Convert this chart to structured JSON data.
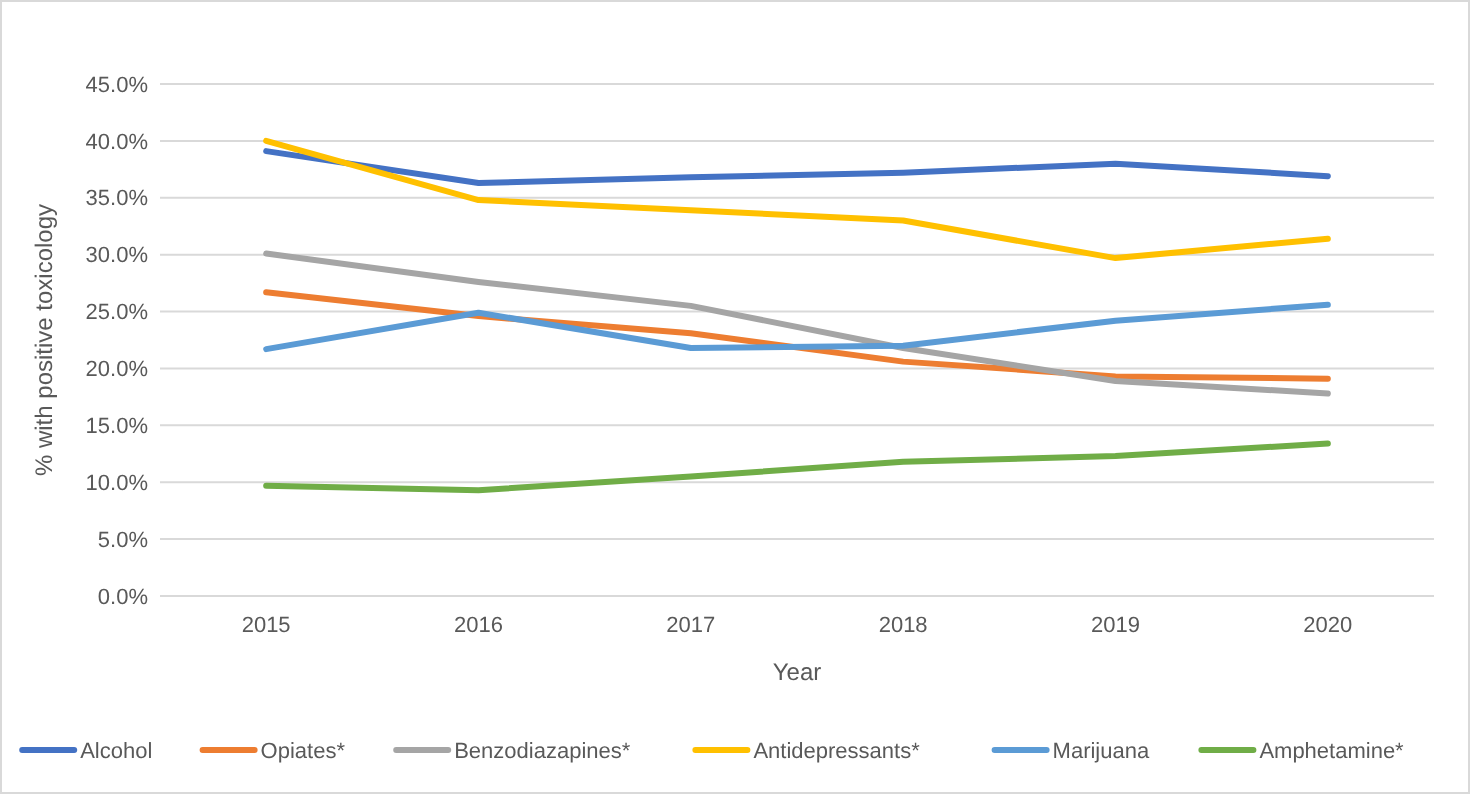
{
  "chart_data": {
    "type": "line",
    "xlabel": "Year",
    "ylabel": "% with positive toxicology",
    "categories": [
      "2015",
      "2016",
      "2017",
      "2018",
      "2019",
      "2020"
    ],
    "series": [
      {
        "name": "Alcohol",
        "color": "#4472c4",
        "values": [
          39.1,
          36.3,
          36.8,
          37.2,
          38.0,
          36.9
        ]
      },
      {
        "name": "Opiates*",
        "color": "#ed7d31",
        "values": [
          26.7,
          24.6,
          23.1,
          20.6,
          19.3,
          19.1
        ]
      },
      {
        "name": "Benzodiazapines*",
        "color": "#a5a5a5",
        "values": [
          30.1,
          27.6,
          25.5,
          21.8,
          18.9,
          17.8
        ]
      },
      {
        "name": "Antidepressants*",
        "color": "#ffc000",
        "values": [
          40.0,
          34.8,
          33.9,
          33.0,
          29.7,
          31.4
        ]
      },
      {
        "name": "Marijuana",
        "color": "#5b9bd5",
        "values": [
          21.7,
          24.9,
          21.8,
          22.0,
          24.2,
          25.6
        ]
      },
      {
        "name": "Amphetamine*",
        "color": "#70ad47",
        "values": [
          9.7,
          9.3,
          10.5,
          11.8,
          12.3,
          13.4
        ]
      }
    ],
    "ylim": [
      0,
      45
    ],
    "yticks": [
      {
        "value": 0,
        "label": "0.0%"
      },
      {
        "value": 5,
        "label": "5.0%"
      },
      {
        "value": 10,
        "label": "10.0%"
      },
      {
        "value": 15,
        "label": "15.0%"
      },
      {
        "value": 20,
        "label": "20.0%"
      },
      {
        "value": 25,
        "label": "25.0%"
      },
      {
        "value": 30,
        "label": "30.0%"
      },
      {
        "value": 35,
        "label": "35.0%"
      },
      {
        "value": 40,
        "label": "40.0%"
      },
      {
        "value": 45,
        "label": "45.0%"
      }
    ],
    "grid": "y",
    "legend": "bottom",
    "marker": "none",
    "line_style": "solid"
  }
}
